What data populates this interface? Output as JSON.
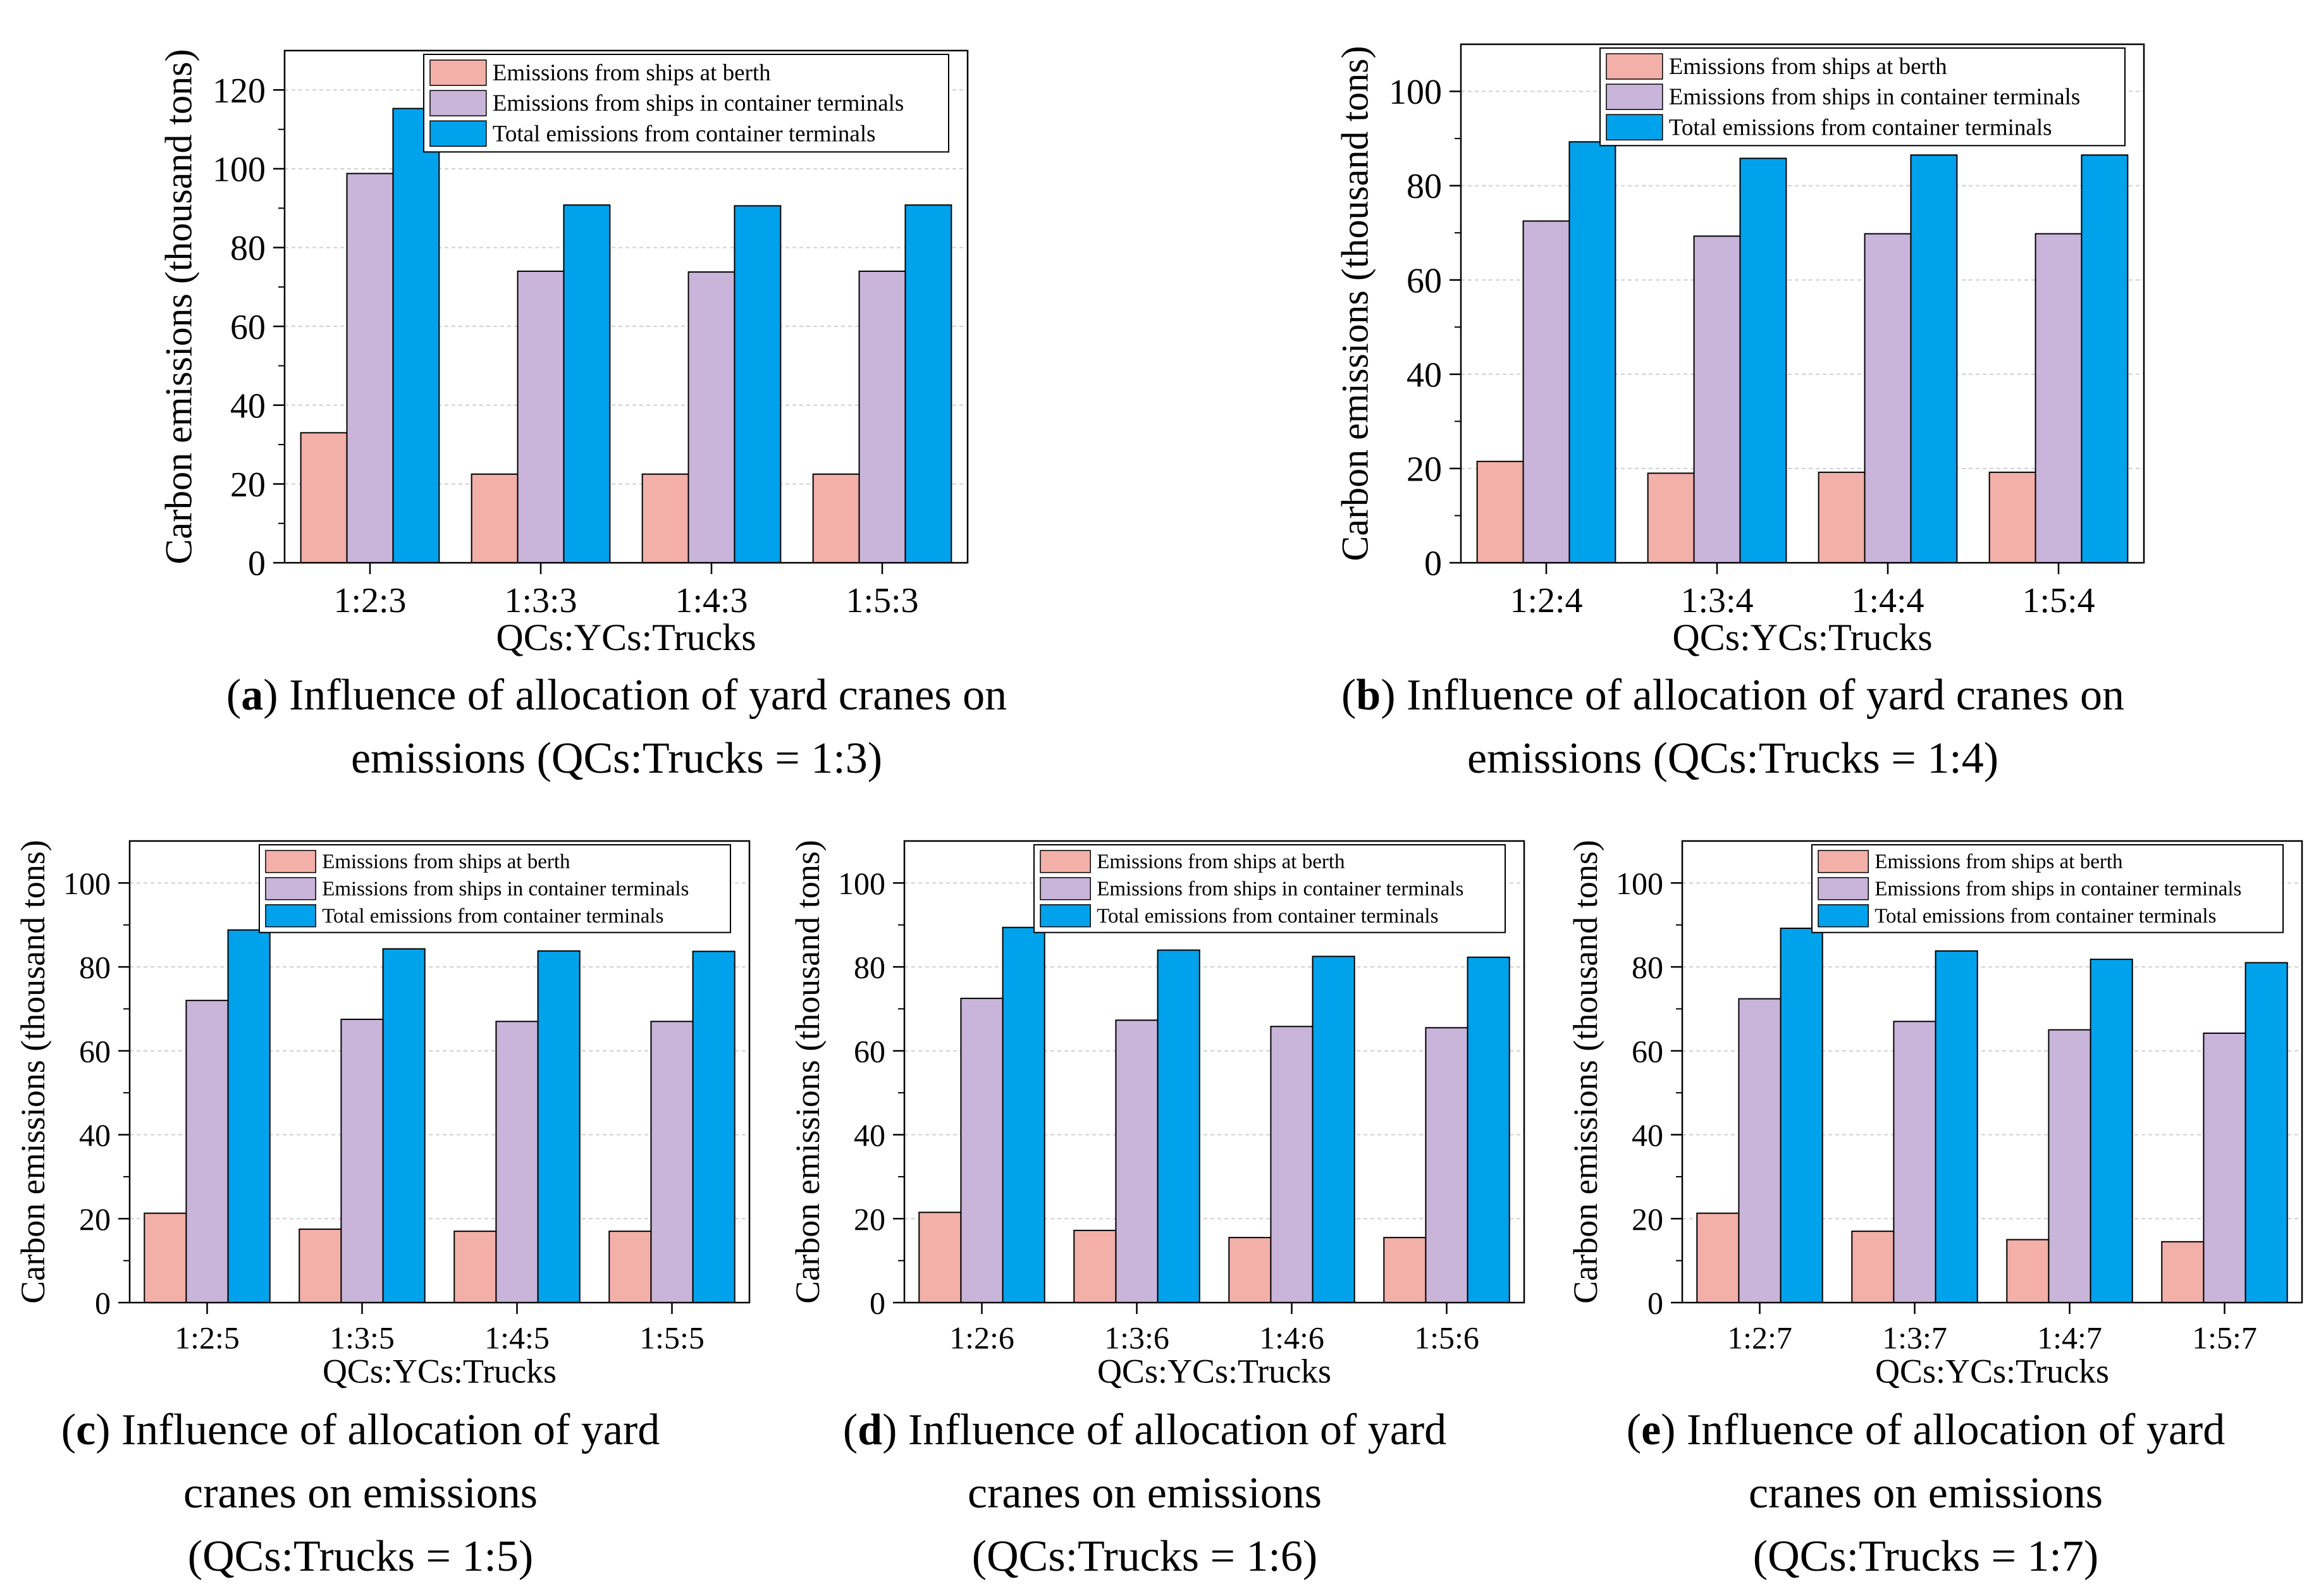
{
  "series_names": [
    "Emissions from ships at berth",
    "Emissions from ships in container terminals",
    "Total emissions from container terminals"
  ],
  "colors": {
    "berth": "#f2b0a8",
    "terminal": "#c9b4da",
    "total": "#00a2ec"
  },
  "chart_data": [
    {
      "panel": "a",
      "type": "bar",
      "xlabel": "QCs:YCs:Trucks",
      "ylabel": "Carbon emissions (thousand tons)",
      "categories": [
        "1:2:3",
        "1:3:3",
        "1:4:3",
        "1:5:3"
      ],
      "ylim": [
        0,
        130
      ],
      "yticks": [
        0,
        20,
        40,
        60,
        80,
        100,
        120
      ],
      "legend_position": "top-right",
      "series": [
        {
          "name": "Emissions from ships at berth",
          "values": [
            33.0,
            22.5,
            22.5,
            22.5
          ]
        },
        {
          "name": "Emissions from ships in container terminals",
          "values": [
            98.8,
            74.0,
            73.8,
            74.0
          ]
        },
        {
          "name": "Total emissions from container terminals",
          "values": [
            115.3,
            90.8,
            90.6,
            90.8
          ]
        }
      ]
    },
    {
      "panel": "b",
      "type": "bar",
      "xlabel": "QCs:YCs:Trucks",
      "ylabel": "Carbon emissions (thousand tons)",
      "categories": [
        "1:2:4",
        "1:3:4",
        "1:4:4",
        "1:5:4"
      ],
      "ylim": [
        0,
        110
      ],
      "yticks": [
        0,
        20,
        40,
        60,
        80,
        100
      ],
      "legend_position": "top-right",
      "series": [
        {
          "name": "Emissions from ships at berth",
          "values": [
            21.5,
            19.0,
            19.2,
            19.2
          ]
        },
        {
          "name": "Emissions from ships in container terminals",
          "values": [
            72.5,
            69.3,
            69.8,
            69.8
          ]
        },
        {
          "name": "Total emissions from container terminals",
          "values": [
            89.3,
            85.8,
            86.5,
            86.5
          ]
        }
      ]
    },
    {
      "panel": "c",
      "type": "bar",
      "xlabel": "QCs:YCs:Trucks",
      "ylabel": "Carbon emissions (thousand tons)",
      "categories": [
        "1:2:5",
        "1:3:5",
        "1:4:5",
        "1:5:5"
      ],
      "ylim": [
        0,
        110
      ],
      "yticks": [
        0,
        20,
        40,
        60,
        80,
        100
      ],
      "legend_position": "top-right",
      "series": [
        {
          "name": "Emissions from ships at berth",
          "values": [
            21.3,
            17.5,
            17.0,
            17.0
          ]
        },
        {
          "name": "Emissions from ships in container terminals",
          "values": [
            72.0,
            67.5,
            67.0,
            67.0
          ]
        },
        {
          "name": "Total emissions from container terminals",
          "values": [
            88.8,
            84.3,
            83.8,
            83.7
          ]
        }
      ]
    },
    {
      "panel": "d",
      "type": "bar",
      "xlabel": "QCs:YCs:Trucks",
      "ylabel": "Carbon emissions (thousand tons)",
      "categories": [
        "1:2:6",
        "1:3:6",
        "1:4:6",
        "1:5:6"
      ],
      "ylim": [
        0,
        110
      ],
      "yticks": [
        0,
        20,
        40,
        60,
        80,
        100
      ],
      "legend_position": "top-right",
      "series": [
        {
          "name": "Emissions from ships at berth",
          "values": [
            21.5,
            17.2,
            15.5,
            15.5
          ]
        },
        {
          "name": "Emissions from ships in container terminals",
          "values": [
            72.5,
            67.3,
            65.8,
            65.5
          ]
        },
        {
          "name": "Total emissions from container terminals",
          "values": [
            89.4,
            84.0,
            82.5,
            82.3
          ]
        }
      ]
    },
    {
      "panel": "e",
      "type": "bar",
      "xlabel": "QCs:YCs:Trucks",
      "ylabel": "Carbon emissions (thousand tons)",
      "categories": [
        "1:2:7",
        "1:3:7",
        "1:4:7",
        "1:5:7"
      ],
      "ylim": [
        0,
        110
      ],
      "yticks": [
        0,
        20,
        40,
        60,
        80,
        100
      ],
      "legend_position": "top-right",
      "series": [
        {
          "name": "Emissions from ships at berth",
          "values": [
            21.3,
            17.0,
            15.0,
            14.5
          ]
        },
        {
          "name": "Emissions from ships in container terminals",
          "values": [
            72.4,
            67.0,
            65.0,
            64.2
          ]
        },
        {
          "name": "Total emissions from container terminals",
          "values": [
            89.2,
            83.8,
            81.8,
            81.0
          ]
        }
      ]
    }
  ],
  "captions": [
    {
      "letter": "a",
      "lines": [
        "Influence of allocation of yard cranes on",
        "emissions (QCs:Trucks = 1:3)"
      ]
    },
    {
      "letter": "b",
      "lines": [
        "Influence of allocation of yard cranes on",
        "emissions (QCs:Trucks = 1:4)"
      ]
    },
    {
      "letter": "c",
      "lines": [
        "Influence of allocation of yard",
        "cranes on emissions",
        "(QCs:Trucks = 1:5)"
      ]
    },
    {
      "letter": "d",
      "lines": [
        "Influence of allocation of yard",
        "cranes on emissions",
        "(QCs:Trucks = 1:6)"
      ]
    },
    {
      "letter": "e",
      "lines": [
        "Influence of allocation of yard",
        "cranes on emissions",
        "(QCs:Trucks = 1:7)"
      ]
    }
  ]
}
